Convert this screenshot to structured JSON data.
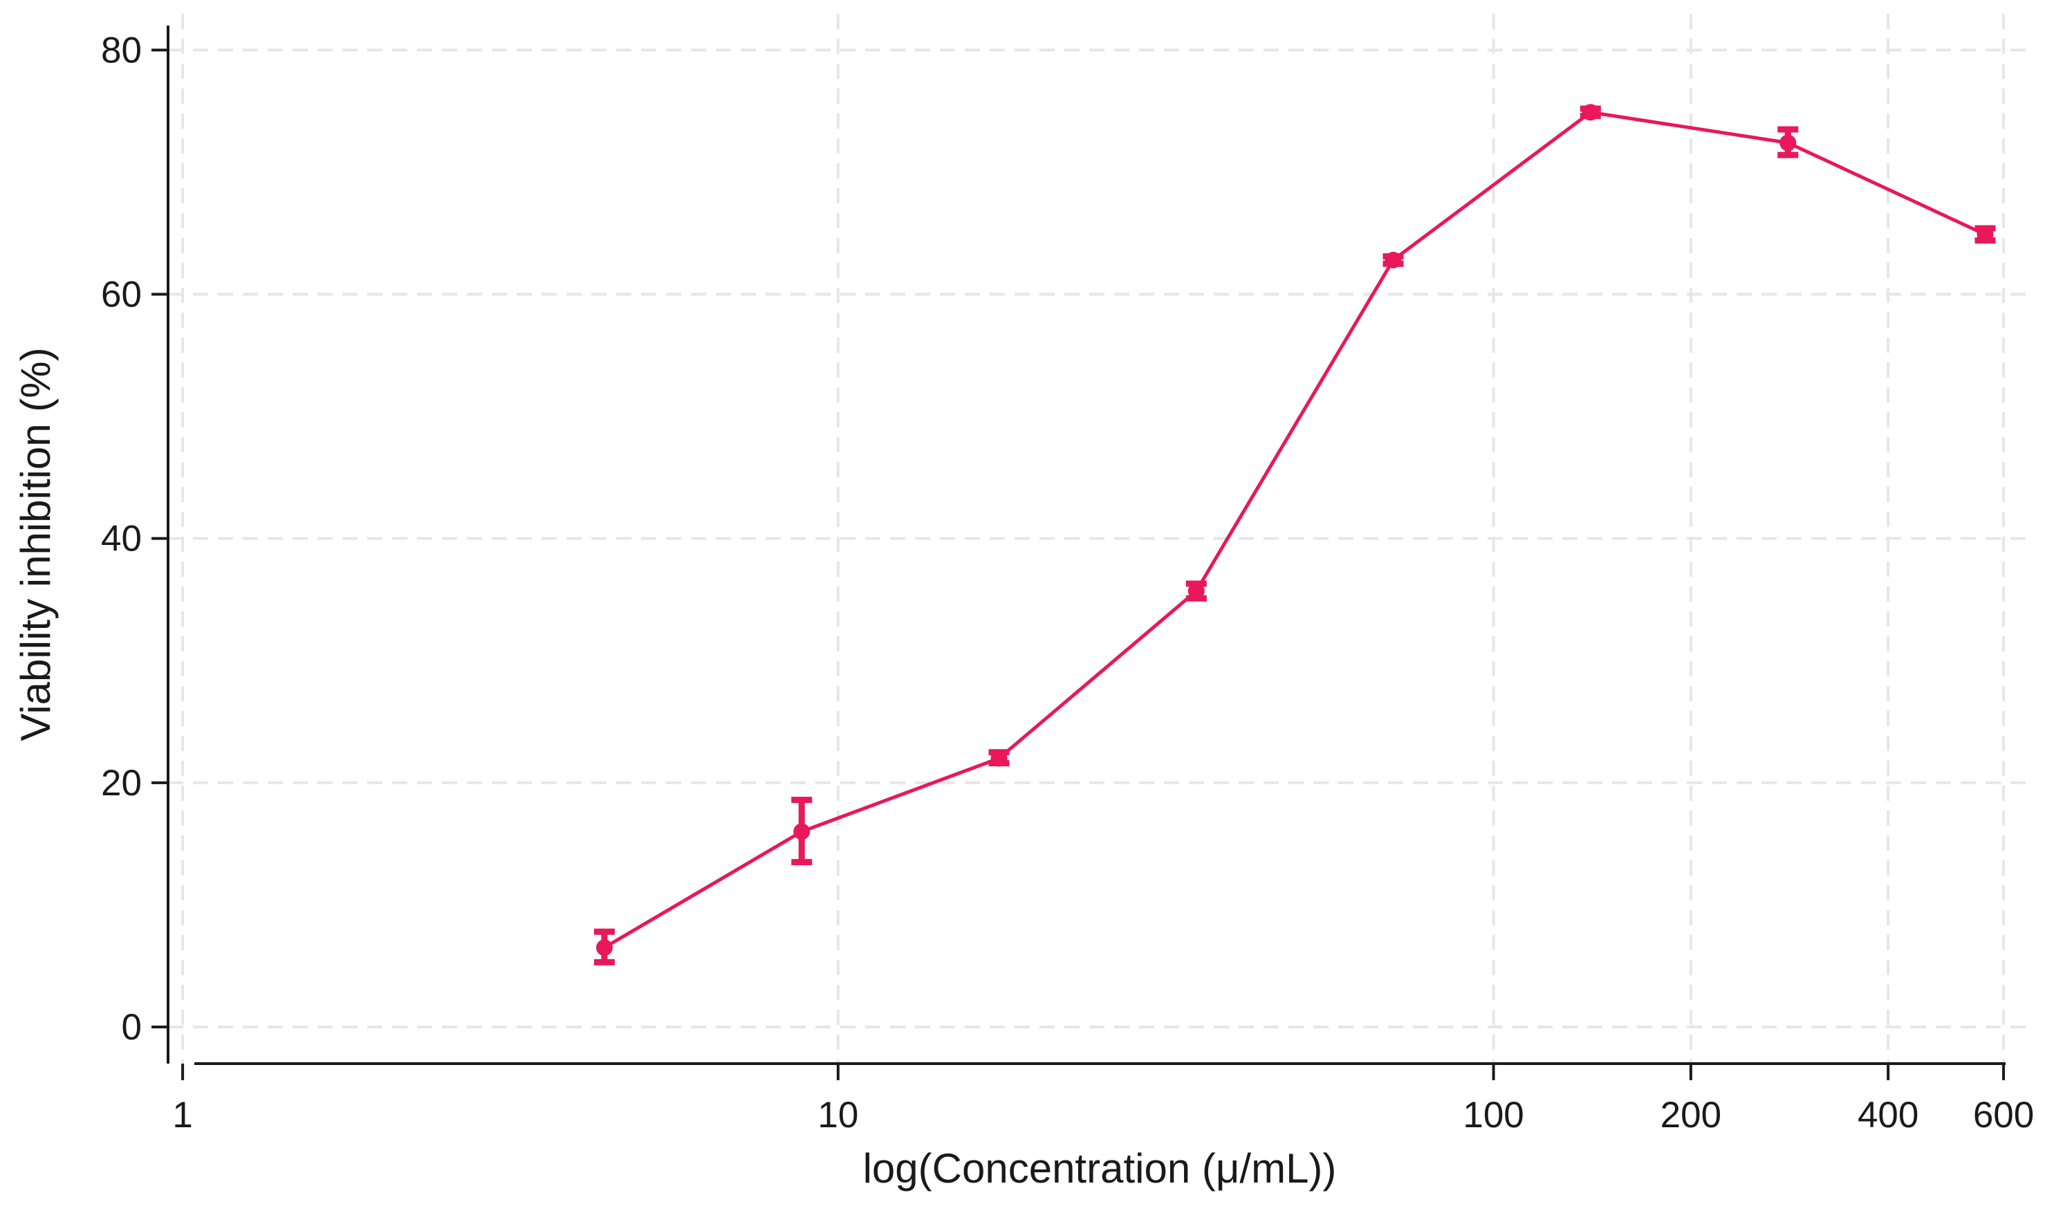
{
  "chart_data": {
    "type": "line",
    "title": "",
    "xlabel": "log(Concentration (μ/mL))",
    "ylabel": "Viability inhibition (%)",
    "x_scale": "log",
    "xlim": [
      0.95,
      650
    ],
    "ylim": [
      -3,
      82
    ],
    "x_ticks": [
      1,
      10,
      100,
      200,
      400,
      600
    ],
    "x_tick_labels": [
      "1",
      "10",
      "100",
      "200",
      "400",
      "600"
    ],
    "y_ticks": [
      0,
      20,
      40,
      60,
      80
    ],
    "y_tick_labels": [
      "0",
      "20",
      "40",
      "60",
      "80"
    ],
    "grid": true,
    "legend": "none",
    "colors": {
      "series": "#e8185a",
      "grid": "#e6e6e6",
      "axis": "#1a1a1a"
    },
    "series": [
      {
        "x": [
          4.4,
          8.8,
          17.6,
          35.2,
          70.3,
          140.6,
          281.3,
          562.5
        ],
        "y": [
          6.5,
          16.0,
          22.0,
          35.7,
          62.8,
          74.9,
          72.4,
          64.9
        ],
        "err_low": [
          5.3,
          13.5,
          21.6,
          35.1,
          62.5,
          74.6,
          71.4,
          64.4
        ],
        "err_high": [
          7.8,
          18.6,
          22.5,
          36.3,
          63.1,
          75.2,
          73.5,
          65.4
        ]
      }
    ]
  }
}
